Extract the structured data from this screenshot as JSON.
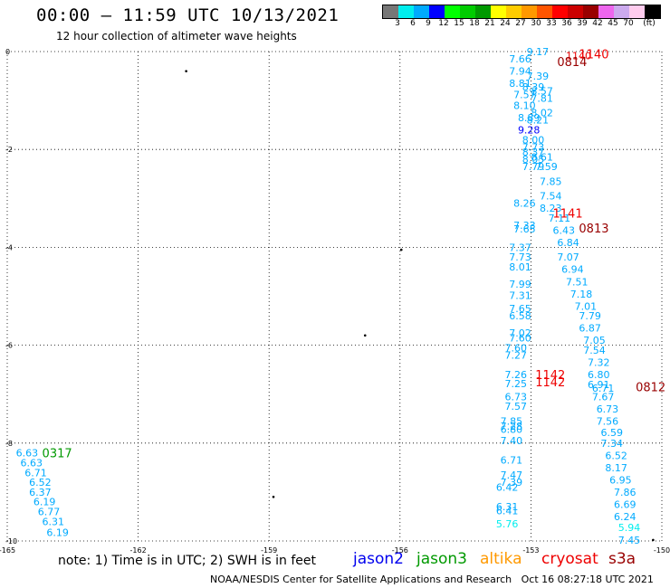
{
  "header": {
    "title": "00:00 – 11:59 UTC 10/13/2021",
    "subtitle": "12 hour collection of altimeter wave heights"
  },
  "legend": {
    "colors": [
      "#777777",
      "#00eeee",
      "#00aaff",
      "#0000ff",
      "#00ff00",
      "#00cc00",
      "#009900",
      "#ffff00",
      "#ffcc00",
      "#ff9900",
      "#ff5500",
      "#ff0000",
      "#cc0000",
      "#990000",
      "#ee66ee",
      "#ccaaee",
      "#ffccee",
      "#000000"
    ],
    "labels": [
      "3",
      "6",
      "9",
      "12",
      "15",
      "18",
      "21",
      "24",
      "27",
      "30",
      "33",
      "36",
      "39",
      "42",
      "45",
      "70",
      "(ft)"
    ]
  },
  "footer": {
    "note": "note: 1) Time is in UTC; 2) SWH is in feet",
    "satellites": [
      {
        "name": "jason2",
        "color": "#0000ee"
      },
      {
        "name": "jason3",
        "color": "#009900"
      },
      {
        "name": "altika",
        "color": "#ff9900"
      },
      {
        "name": "cryosat",
        "color": "#ee0000"
      },
      {
        "name": "s3a",
        "color": "#990000"
      }
    ],
    "credit": "NOAA/NESDIS Center for Satellite Applications and Research   Oct 16 08:27:18 UTC 2021"
  },
  "chart_data": {
    "type": "scatter",
    "xlim": [
      -165,
      -150
    ],
    "ylim": [
      -10,
      0
    ],
    "x_ticks": [
      -165,
      -162,
      -159,
      -156,
      -153,
      -150
    ],
    "y_ticks": [
      0,
      -2,
      -4,
      -6,
      -8,
      -10
    ],
    "grid": true,
    "times": [
      {
        "label": "1140",
        "lon": -151.9,
        "lat": -0.05,
        "color": "#ee0000"
      },
      {
        "label": "0814",
        "lon": -152.4,
        "lat": -0.2,
        "color": "#990000"
      },
      {
        "label": "1141",
        "lon": -152.5,
        "lat": -3.3,
        "color": "#ee0000"
      },
      {
        "label": "0813",
        "lon": -151.9,
        "lat": -3.6,
        "color": "#990000"
      },
      {
        "label": "1142",
        "lon": -152.9,
        "lat": -6.6,
        "color": "#ee0000"
      },
      {
        "label": "1142",
        "lon": -152.9,
        "lat": -6.75,
        "color": "#ee0000"
      },
      {
        "label": "0812",
        "lon": -150.6,
        "lat": -6.85,
        "color": "#990000"
      },
      {
        "label": "0317",
        "lon": -164.2,
        "lat": -8.2,
        "color": "#009900"
      }
    ],
    "points": [
      {
        "v": "9.17",
        "lon": -153.1,
        "lat": -0.0,
        "c": "#00aaff"
      },
      {
        "v": "1140",
        "lon": -152.2,
        "lat": -0.08,
        "c": "#ee0000"
      },
      {
        "v": "7.66",
        "lon": -153.5,
        "lat": -0.15,
        "c": "#00aaff"
      },
      {
        "v": "7.94",
        "lon": -153.5,
        "lat": -0.4,
        "c": "#00aaff"
      },
      {
        "v": "7.39",
        "lon": -153.1,
        "lat": -0.5,
        "c": "#00aaff"
      },
      {
        "v": "8.81",
        "lon": -153.5,
        "lat": -0.65,
        "c": "#00aaff"
      },
      {
        "v": "8.39",
        "lon": -153.2,
        "lat": -0.72,
        "c": "#00aaff"
      },
      {
        "v": "7.57",
        "lon": -153.4,
        "lat": -0.88,
        "c": "#00aaff"
      },
      {
        "v": "8.57",
        "lon": -153.0,
        "lat": -0.8,
        "c": "#00aaff"
      },
      {
        "v": "7.81",
        "lon": -153.0,
        "lat": -0.95,
        "c": "#00aaff"
      },
      {
        "v": "8.10",
        "lon": -153.4,
        "lat": -1.1,
        "c": "#00aaff"
      },
      {
        "v": "8.02",
        "lon": -153.0,
        "lat": -1.25,
        "c": "#00aaff"
      },
      {
        "v": "8.89",
        "lon": -153.3,
        "lat": -1.35,
        "c": "#00aaff"
      },
      {
        "v": "8.21",
        "lon": -153.1,
        "lat": -1.4,
        "c": "#00aaff"
      },
      {
        "v": "9.28",
        "lon": -153.3,
        "lat": -1.6,
        "c": "#0000ff"
      },
      {
        "v": "8.00",
        "lon": -153.2,
        "lat": -1.8,
        "c": "#00aaff"
      },
      {
        "v": "7.73",
        "lon": -153.2,
        "lat": -1.95,
        "c": "#00aaff"
      },
      {
        "v": "8.37",
        "lon": -153.2,
        "lat": -2.05,
        "c": "#00aaff"
      },
      {
        "v": "8.61",
        "lon": -153.0,
        "lat": -2.15,
        "c": "#00aaff"
      },
      {
        "v": "8.05",
        "lon": -153.2,
        "lat": -2.2,
        "c": "#00aaff"
      },
      {
        "v": "7.79",
        "lon": -153.2,
        "lat": -2.35,
        "c": "#00aaff"
      },
      {
        "v": "7.59",
        "lon": -152.9,
        "lat": -2.35,
        "c": "#00aaff"
      },
      {
        "v": "7.85",
        "lon": -152.8,
        "lat": -2.65,
        "c": "#00aaff"
      },
      {
        "v": "7.54",
        "lon": -152.8,
        "lat": -2.95,
        "c": "#00aaff"
      },
      {
        "v": "8.26",
        "lon": -153.4,
        "lat": -3.1,
        "c": "#00aaff"
      },
      {
        "v": "8.23",
        "lon": -152.8,
        "lat": -3.2,
        "c": "#00aaff"
      },
      {
        "v": "7.11",
        "lon": -152.6,
        "lat": -3.4,
        "c": "#00aaff"
      },
      {
        "v": "7.33",
        "lon": -153.4,
        "lat": -3.55,
        "c": "#00aaff"
      },
      {
        "v": "7.65",
        "lon": -153.4,
        "lat": -3.62,
        "c": "#00aaff"
      },
      {
        "v": "6.43",
        "lon": -152.5,
        "lat": -3.65,
        "c": "#00aaff"
      },
      {
        "v": "6.84",
        "lon": -152.4,
        "lat": -3.9,
        "c": "#00aaff"
      },
      {
        "v": "7.37",
        "lon": -153.5,
        "lat": -4.0,
        "c": "#00aaff"
      },
      {
        "v": "7.73",
        "lon": -153.5,
        "lat": -4.2,
        "c": "#00aaff"
      },
      {
        "v": "7.07",
        "lon": -152.4,
        "lat": -4.2,
        "c": "#00aaff"
      },
      {
        "v": "8.01",
        "lon": -153.5,
        "lat": -4.4,
        "c": "#00aaff"
      },
      {
        "v": "6.94",
        "lon": -152.3,
        "lat": -4.45,
        "c": "#00aaff"
      },
      {
        "v": "7.51",
        "lon": -152.2,
        "lat": -4.7,
        "c": "#00aaff"
      },
      {
        "v": "7.99",
        "lon": -153.5,
        "lat": -4.75,
        "c": "#00aaff"
      },
      {
        "v": "7.18",
        "lon": -152.1,
        "lat": -4.95,
        "c": "#00aaff"
      },
      {
        "v": "7.31",
        "lon": -153.5,
        "lat": -4.98,
        "c": "#00aaff"
      },
      {
        "v": "7.01",
        "lon": -152.0,
        "lat": -5.2,
        "c": "#00aaff"
      },
      {
        "v": "7.65",
        "lon": -153.5,
        "lat": -5.25,
        "c": "#00aaff"
      },
      {
        "v": "6.58",
        "lon": -153.5,
        "lat": -5.4,
        "c": "#00aaff"
      },
      {
        "v": "7.79",
        "lon": -151.9,
        "lat": -5.4,
        "c": "#00aaff"
      },
      {
        "v": "6.87",
        "lon": -151.9,
        "lat": -5.65,
        "c": "#00aaff"
      },
      {
        "v": "7.02",
        "lon": -153.5,
        "lat": -5.75,
        "c": "#00aaff"
      },
      {
        "v": "7.60",
        "lon": -153.5,
        "lat": -5.85,
        "c": "#00aaff"
      },
      {
        "v": "7.05",
        "lon": -151.8,
        "lat": -5.9,
        "c": "#00aaff"
      },
      {
        "v": "7.60",
        "lon": -153.6,
        "lat": -6.05,
        "c": "#00aaff"
      },
      {
        "v": "7.54",
        "lon": -151.8,
        "lat": -6.1,
        "c": "#00aaff"
      },
      {
        "v": "7.27",
        "lon": -153.6,
        "lat": -6.2,
        "c": "#00aaff"
      },
      {
        "v": "7.32",
        "lon": -151.7,
        "lat": -6.35,
        "c": "#00aaff"
      },
      {
        "v": "7.26",
        "lon": -153.6,
        "lat": -6.6,
        "c": "#00aaff"
      },
      {
        "v": "6.80",
        "lon": -151.7,
        "lat": -6.6,
        "c": "#00aaff"
      },
      {
        "v": "7.25",
        "lon": -153.6,
        "lat": -6.78,
        "c": "#00aaff"
      },
      {
        "v": "6.91",
        "lon": -151.7,
        "lat": -6.8,
        "c": "#00aaff"
      },
      {
        "v": "6.71",
        "lon": -151.6,
        "lat": -6.88,
        "c": "#00aaff"
      },
      {
        "v": "6.73",
        "lon": -153.6,
        "lat": -7.05,
        "c": "#00aaff"
      },
      {
        "v": "7.67",
        "lon": -151.6,
        "lat": -7.05,
        "c": "#00aaff"
      },
      {
        "v": "7.57",
        "lon": -153.6,
        "lat": -7.25,
        "c": "#00aaff"
      },
      {
        "v": "6.73",
        "lon": -151.5,
        "lat": -7.3,
        "c": "#00aaff"
      },
      {
        "v": "7.85",
        "lon": -153.7,
        "lat": -7.55,
        "c": "#00aaff"
      },
      {
        "v": "7.56",
        "lon": -151.5,
        "lat": -7.55,
        "c": "#00aaff"
      },
      {
        "v": "7.28",
        "lon": -153.7,
        "lat": -7.65,
        "c": "#00aaff"
      },
      {
        "v": "6.80",
        "lon": -153.7,
        "lat": -7.72,
        "c": "#00aaff"
      },
      {
        "v": "6.59",
        "lon": -151.4,
        "lat": -7.78,
        "c": "#00aaff"
      },
      {
        "v": "7.40",
        "lon": -153.7,
        "lat": -7.95,
        "c": "#00aaff"
      },
      {
        "v": "7.34",
        "lon": -151.4,
        "lat": -8.0,
        "c": "#00aaff"
      },
      {
        "v": "6.52",
        "lon": -151.3,
        "lat": -8.25,
        "c": "#00aaff"
      },
      {
        "v": "6.71",
        "lon": -153.7,
        "lat": -8.35,
        "c": "#00aaff"
      },
      {
        "v": "8.17",
        "lon": -151.3,
        "lat": -8.5,
        "c": "#00aaff"
      },
      {
        "v": "7.47",
        "lon": -153.7,
        "lat": -8.65,
        "c": "#00aaff"
      },
      {
        "v": "6.95",
        "lon": -151.2,
        "lat": -8.75,
        "c": "#00aaff"
      },
      {
        "v": "7.39",
        "lon": -153.7,
        "lat": -8.8,
        "c": "#00aaff"
      },
      {
        "v": "6.42",
        "lon": -153.8,
        "lat": -8.9,
        "c": "#00aaff"
      },
      {
        "v": "7.86",
        "lon": -151.1,
        "lat": -9.0,
        "c": "#00aaff"
      },
      {
        "v": "6.69",
        "lon": -151.1,
        "lat": -9.25,
        "c": "#00aaff"
      },
      {
        "v": "6.31",
        "lon": -153.8,
        "lat": -9.3,
        "c": "#00aaff"
      },
      {
        "v": "6.41",
        "lon": -153.8,
        "lat": -9.38,
        "c": "#00aaff"
      },
      {
        "v": "6.24",
        "lon": -151.1,
        "lat": -9.5,
        "c": "#00aaff"
      },
      {
        "v": "5.76",
        "lon": -153.8,
        "lat": -9.65,
        "c": "#00eeee"
      },
      {
        "v": "5.94",
        "lon": -151.0,
        "lat": -9.72,
        "c": "#00eeee"
      },
      {
        "v": "7.45",
        "lon": -151.0,
        "lat": -9.98,
        "c": "#00aaff"
      },
      {
        "v": "6.63",
        "lon": -164.8,
        "lat": -8.2,
        "c": "#00aaff"
      },
      {
        "v": "6.63",
        "lon": -164.7,
        "lat": -8.4,
        "c": "#00aaff"
      },
      {
        "v": "6.71",
        "lon": -164.6,
        "lat": -8.6,
        "c": "#00aaff"
      },
      {
        "v": "6.52",
        "lon": -164.5,
        "lat": -8.8,
        "c": "#00aaff"
      },
      {
        "v": "6.37",
        "lon": -164.5,
        "lat": -9.0,
        "c": "#00aaff"
      },
      {
        "v": "6.19",
        "lon": -164.4,
        "lat": -9.2,
        "c": "#00aaff"
      },
      {
        "v": "6.77",
        "lon": -164.3,
        "lat": -9.4,
        "c": "#00aaff"
      },
      {
        "v": "6.31",
        "lon": -164.2,
        "lat": -9.6,
        "c": "#00aaff"
      },
      {
        "v": "6.19",
        "lon": -164.1,
        "lat": -9.82,
        "c": "#00aaff"
      }
    ]
  }
}
